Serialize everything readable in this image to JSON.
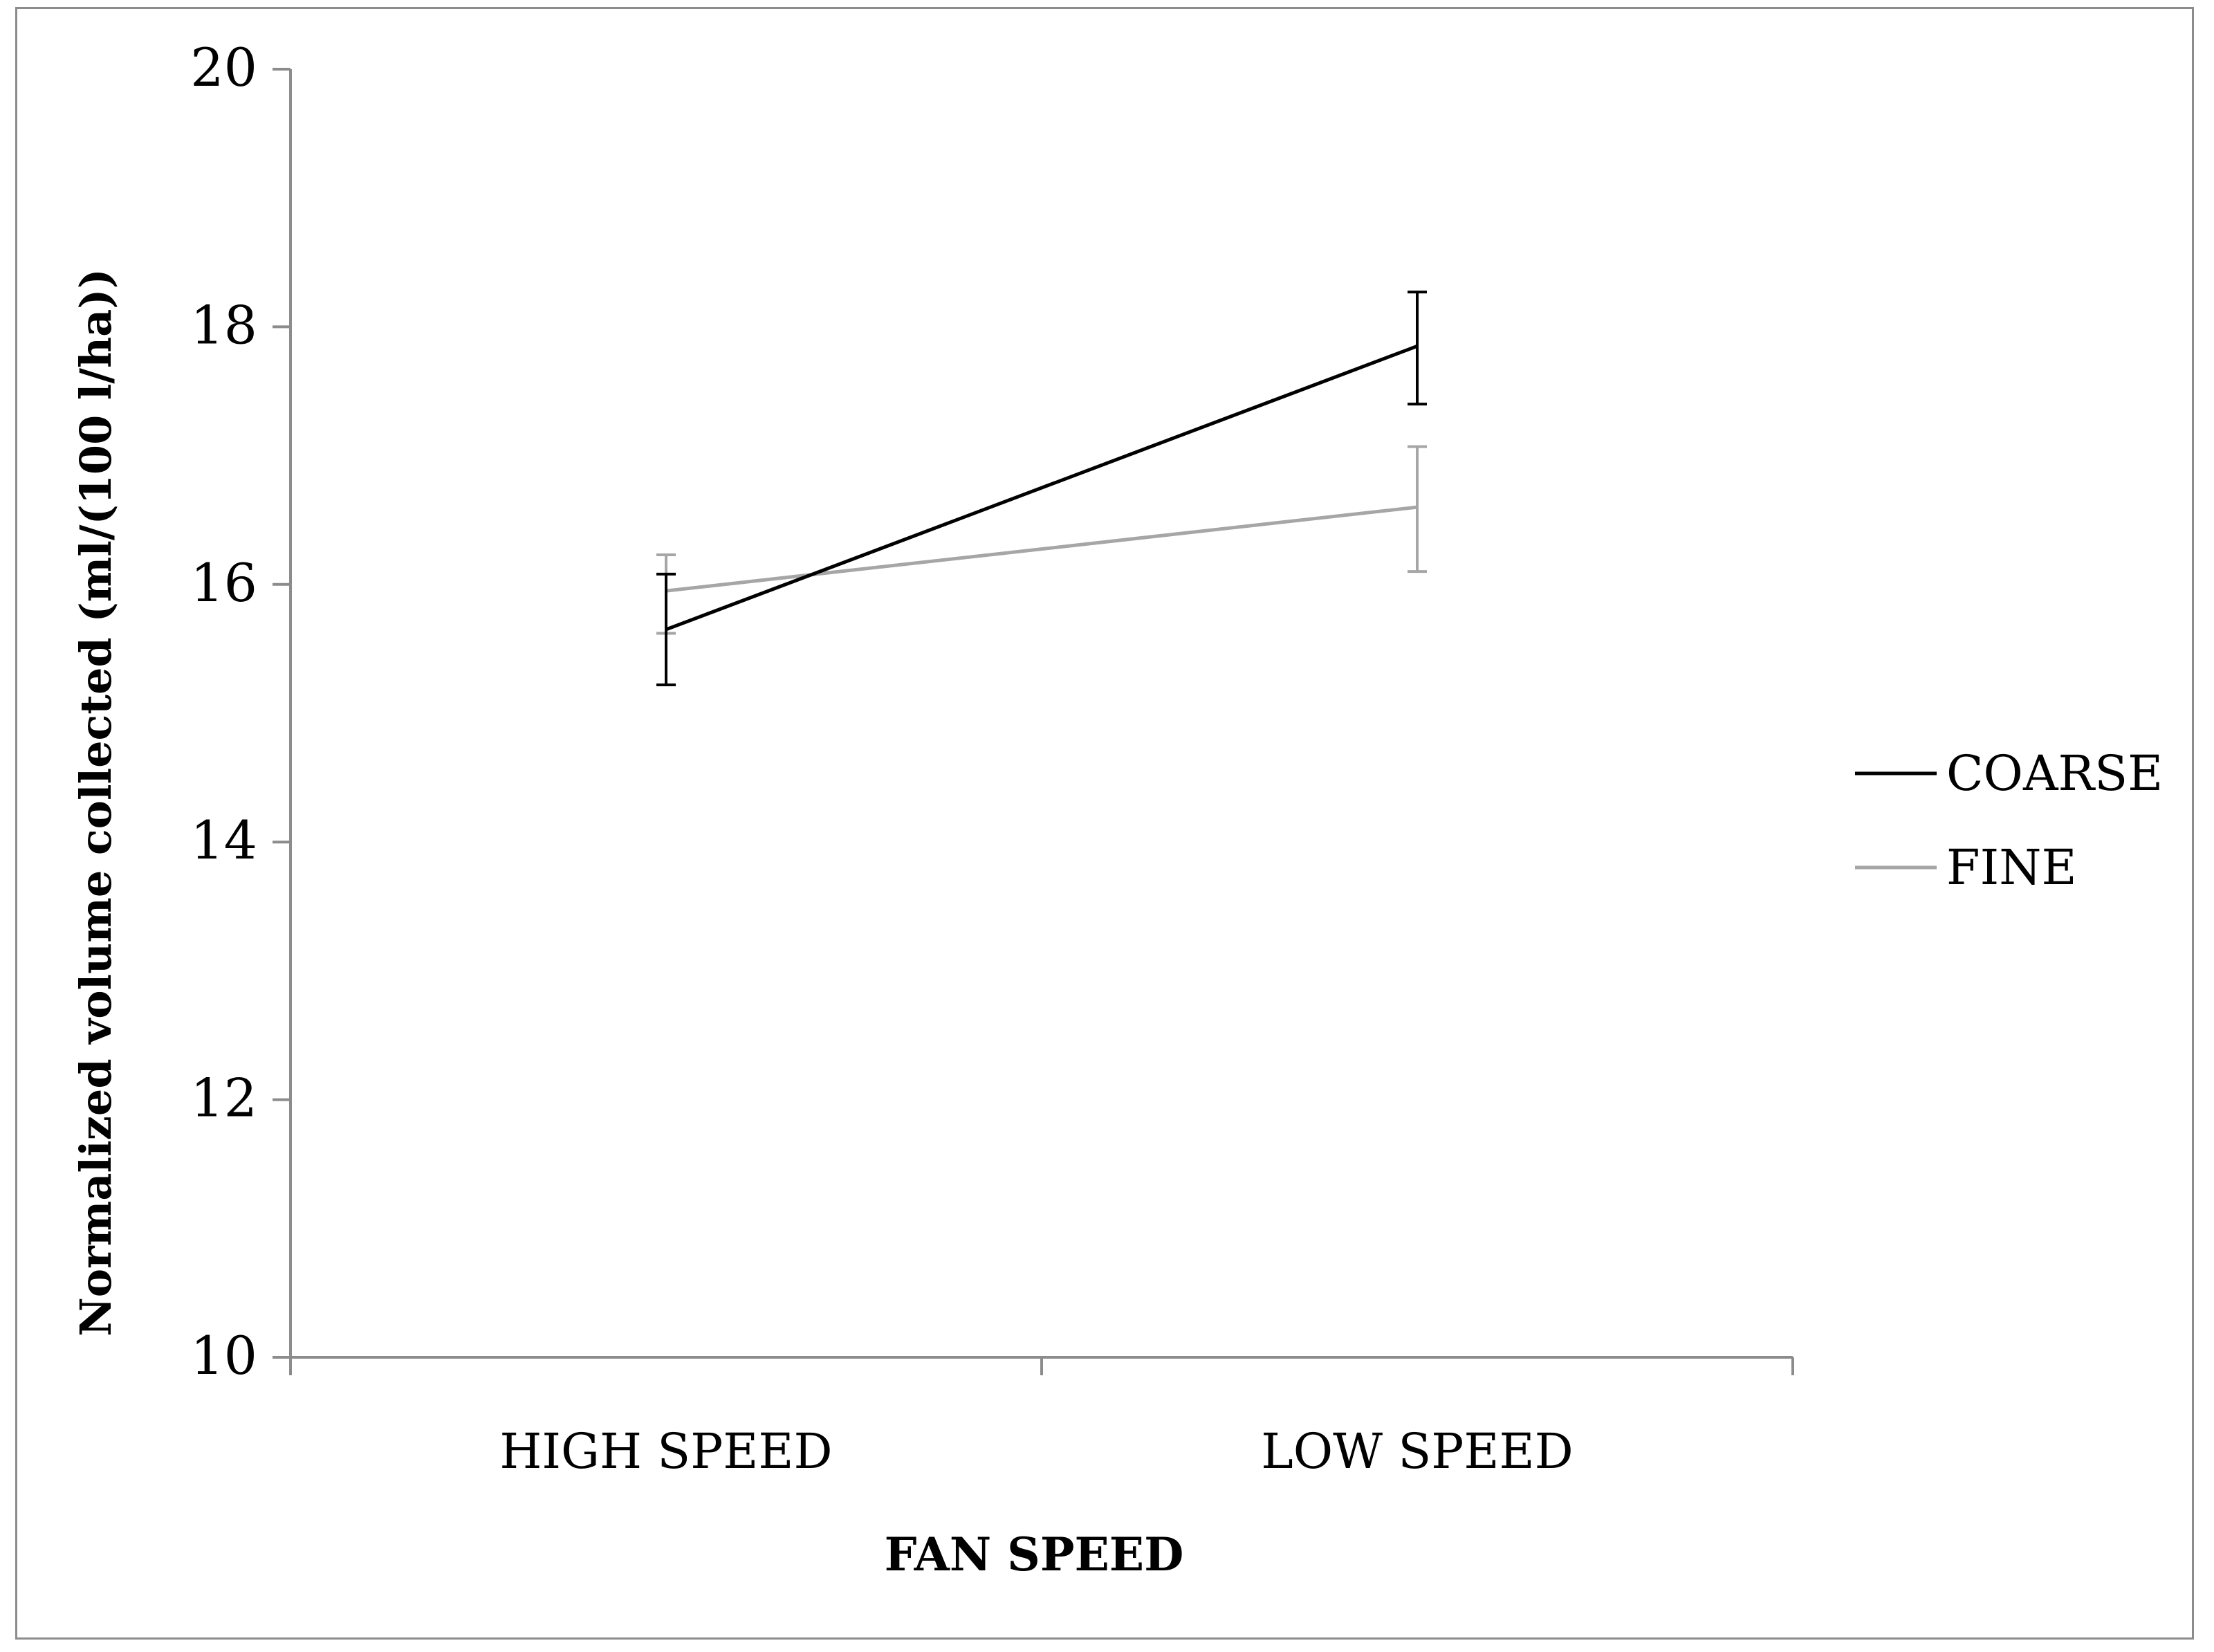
{
  "chart_data": {
    "type": "line",
    "title": "",
    "xlabel": "FAN SPEED",
    "ylabel": "Normalized volume collected (ml/(100 l/ha))",
    "categories": [
      "HIGH SPEED",
      "LOW SPEED"
    ],
    "ylim": [
      10,
      20
    ],
    "yticks": [
      "10",
      "12",
      "14",
      "16",
      "18",
      "20"
    ],
    "legend_position": "right",
    "series": [
      {
        "name": "COARSE",
        "values": [
          15.65,
          17.85
        ],
        "err_low": [
          15.22,
          17.4
        ],
        "err_high": [
          16.08,
          18.27
        ],
        "color": "#000000"
      },
      {
        "name": "FINE",
        "values": [
          15.95,
          16.6
        ],
        "err_low": [
          15.62,
          16.1
        ],
        "err_high": [
          16.23,
          17.07
        ],
        "color": "#a6a6a6"
      }
    ]
  }
}
